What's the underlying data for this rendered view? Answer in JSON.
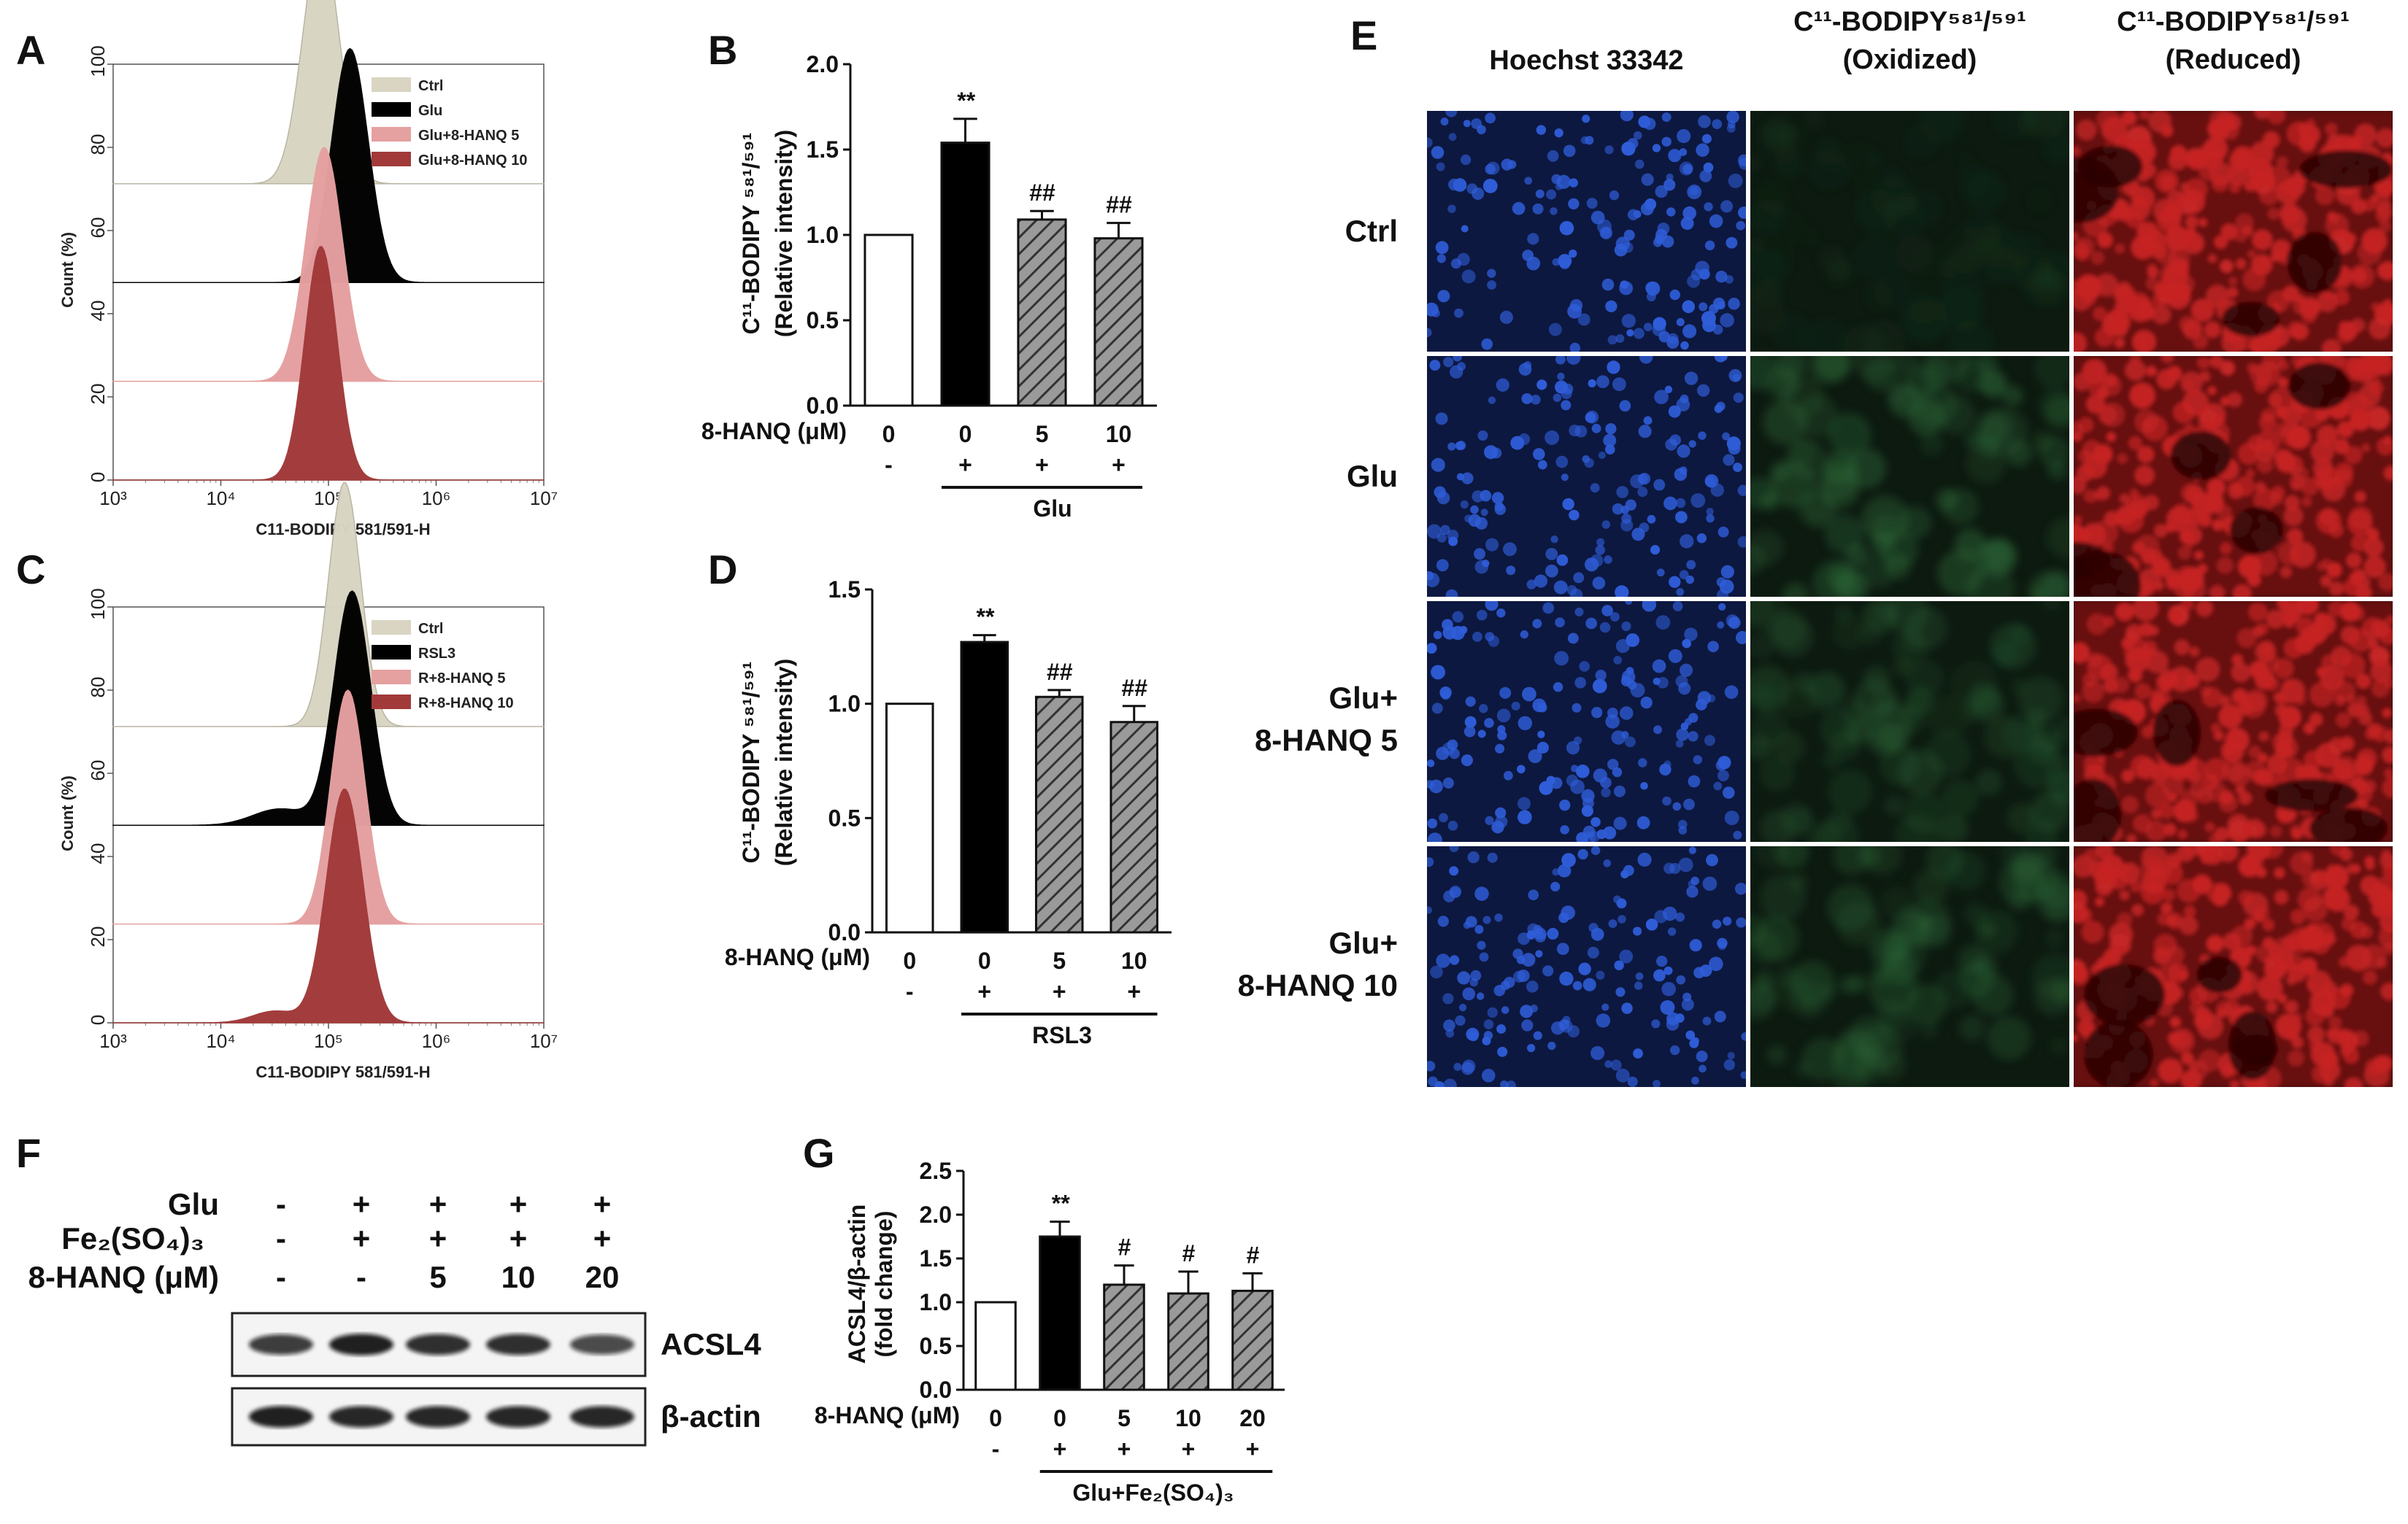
{
  "panel_letters": {
    "A": "A",
    "B": "B",
    "C": "C",
    "D": "D",
    "E": "E",
    "F": "F",
    "G": "G"
  },
  "colors": {
    "ctrl": "#d9d5c2",
    "glu": "#000000",
    "low": "#e5a0a0",
    "high": "#a23a3a",
    "hatch": "#777777",
    "nuclei_bg": "#0d1840",
    "nucleus": "#2f5dd8",
    "oxidized_bg": "#0d1a10",
    "oxidized": "#2e6b3a",
    "reduced_bg": "#3a0808",
    "reduced": "#c62424"
  },
  "chart_data": [
    {
      "id": "A",
      "type": "area",
      "xlabel": "C11-BODIPY 581/591-H",
      "ylabel": "Count (%)",
      "x_scale": "log",
      "x_ticks": [
        "10³",
        "10⁴",
        "10⁵",
        "10⁶",
        "10⁷"
      ],
      "y_ticks": [
        "0",
        "20",
        "40",
        "60",
        "80",
        "100"
      ],
      "ylim": [
        0,
        100
      ],
      "legend": "top-right",
      "series": [
        {
          "name": "Ctrl",
          "peak_log10_x": 4.93,
          "width": 0.17,
          "color_key": "ctrl"
        },
        {
          "name": "Glu",
          "peak_log10_x": 5.2,
          "width": 0.17,
          "color_key": "glu"
        },
        {
          "name": "Glu+8-HANQ 5",
          "peak_log10_x": 4.96,
          "width": 0.17,
          "color_key": "low"
        },
        {
          "name": "Glu+8-HANQ 10",
          "peak_log10_x": 4.93,
          "width": 0.15,
          "color_key": "high"
        }
      ]
    },
    {
      "id": "B",
      "type": "bar",
      "ylabel": "C¹¹-BODIPY ⁵⁸¹/⁵⁹¹ (Relative intensity)",
      "ylim": [
        0,
        2.0
      ],
      "y_ticks": [
        "0.0",
        "0.5",
        "1.0",
        "1.5",
        "2.0"
      ],
      "row_label": "8-HANQ (μM)",
      "categories": [
        "0",
        "0",
        "5",
        "10"
      ],
      "treatment_signs": [
        "-",
        "+",
        "+",
        "+"
      ],
      "treatment_label": "Glu",
      "values": [
        1.0,
        1.54,
        1.09,
        0.98
      ],
      "errors": [
        0,
        0.14,
        0.05,
        0.09
      ],
      "significance": [
        "",
        "**",
        "##",
        "##"
      ],
      "fill": [
        "white",
        "black",
        "hatch",
        "hatch"
      ]
    },
    {
      "id": "C",
      "type": "area",
      "xlabel": "C11-BODIPY 581/591-H",
      "ylabel": "Count (%)",
      "x_scale": "log",
      "x_ticks": [
        "10³",
        "10⁴",
        "10⁵",
        "10⁶",
        "10⁷"
      ],
      "y_ticks": [
        "0",
        "20",
        "40",
        "60",
        "80",
        "100"
      ],
      "ylim": [
        0,
        100
      ],
      "legend": "top-right",
      "series": [
        {
          "name": "Ctrl",
          "peak_log10_x": 5.15,
          "width": 0.15,
          "color_key": "ctrl"
        },
        {
          "name": "RSL3",
          "peak_log10_x": 5.22,
          "width": 0.17,
          "color_key": "glu"
        },
        {
          "name": "R+8-HANQ 5",
          "peak_log10_x": 5.18,
          "width": 0.16,
          "color_key": "low"
        },
        {
          "name": "R+8-HANQ 10",
          "peak_log10_x": 5.15,
          "width": 0.17,
          "color_key": "high"
        }
      ]
    },
    {
      "id": "D",
      "type": "bar",
      "ylabel": "C¹¹-BODIPY ⁵⁸¹/⁵⁹¹ (Relative intensity)",
      "ylim": [
        0,
        1.5
      ],
      "y_ticks": [
        "0.0",
        "0.5",
        "1.0",
        "1.5"
      ],
      "row_label": "8-HANQ (μM)",
      "categories": [
        "0",
        "0",
        "5",
        "10"
      ],
      "treatment_signs": [
        "-",
        "+",
        "+",
        "+"
      ],
      "treatment_label": "RSL3",
      "values": [
        1.0,
        1.27,
        1.03,
        0.92
      ],
      "errors": [
        0,
        0.03,
        0.03,
        0.07
      ],
      "significance": [
        "",
        "**",
        "##",
        "##"
      ],
      "fill": [
        "white",
        "black",
        "hatch",
        "hatch"
      ]
    },
    {
      "id": "G",
      "type": "bar",
      "ylabel": "ACSL4/β-actin (fold change)",
      "ylim": [
        0,
        2.5
      ],
      "y_ticks": [
        "0.0",
        "0.5",
        "1.0",
        "1.5",
        "2.0",
        "2.5"
      ],
      "row_label": "8-HANQ (μM)",
      "categories": [
        "0",
        "0",
        "5",
        "10",
        "20"
      ],
      "treatment_signs": [
        "-",
        "+",
        "+",
        "+",
        "+"
      ],
      "treatment_label": "Glu+Fe₂(SO₄)₃",
      "values": [
        1.0,
        1.75,
        1.2,
        1.1,
        1.13
      ],
      "errors": [
        0,
        0.17,
        0.22,
        0.25,
        0.2
      ],
      "significance": [
        "",
        "**",
        "#",
        "#",
        "#"
      ],
      "fill": [
        "white",
        "black",
        "hatch",
        "hatch",
        "hatch"
      ]
    }
  ],
  "panel_e": {
    "column_labels": [
      [
        "Hoechst 33342"
      ],
      [
        "C¹¹-BODIPY⁵⁸¹/⁵⁹¹",
        "(Oxidized)"
      ],
      [
        "C¹¹-BODIPY⁵⁸¹/⁵⁹¹",
        "(Reduced)"
      ]
    ],
    "row_labels": [
      [
        "Ctrl"
      ],
      [
        "Glu"
      ],
      [
        "Glu+",
        "8-HANQ 5"
      ],
      [
        "Glu+",
        "8-HANQ 10"
      ]
    ],
    "oxidized_intensity": [
      0.08,
      0.45,
      0.3,
      0.32
    ]
  },
  "panel_f": {
    "rows": [
      {
        "label": "Glu",
        "signs": [
          "-",
          "+",
          "+",
          "+",
          "+"
        ]
      },
      {
        "label": "Fe₂(SO₄)₃",
        "signs": [
          "-",
          "+",
          "+",
          "+",
          "+"
        ]
      },
      {
        "label": "8-HANQ (μM)",
        "signs": [
          "-",
          "-",
          "5",
          "10",
          "20"
        ]
      }
    ],
    "blots": [
      {
        "label": "ACSL4",
        "intensity": [
          0.75,
          0.95,
          0.85,
          0.85,
          0.65
        ]
      },
      {
        "label": "β-actin",
        "intensity": [
          0.95,
          0.9,
          0.9,
          0.9,
          0.9
        ]
      }
    ]
  }
}
